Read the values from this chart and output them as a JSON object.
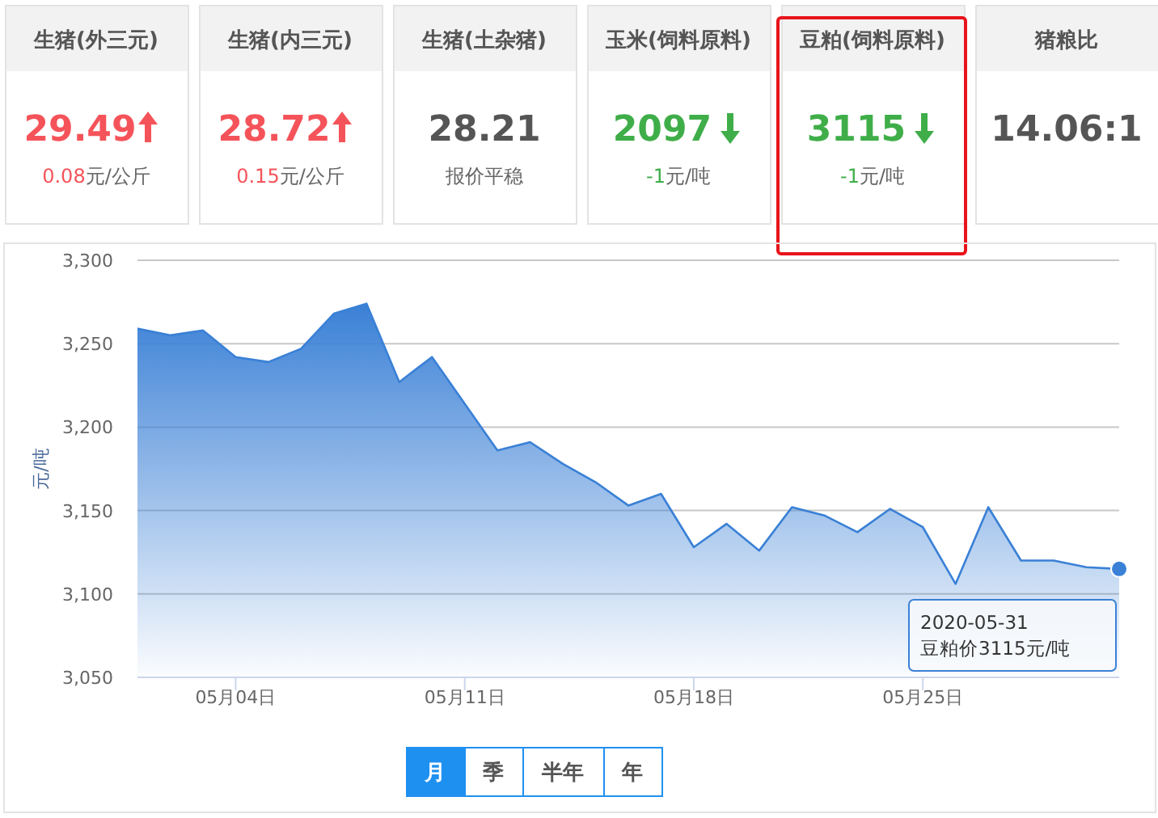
{
  "chart_data": [
    {
      "type": "other",
      "categories": [
        "生猪(外三元)",
        "生猪(内三元)",
        "生猪(土杂猪)",
        "玉米(饲料原料)",
        "豆粕(饲料原料)",
        "猪粮比"
      ],
      "value_labels": [
        "29.49",
        "28.72",
        "28.21",
        "2097",
        "3115",
        "14.06:1"
      ],
      "annotations": [
        "0.08元/公斤",
        "0.15元/公斤",
        "报价平稳",
        "-1元/吨",
        "-1元/吨"
      ]
    },
    {
      "type": "area",
      "ylabel": "元/吨",
      "x": [
        "2020-05-01",
        "2020-05-02",
        "2020-05-03",
        "2020-05-04",
        "2020-05-05",
        "2020-05-06",
        "2020-05-07",
        "2020-05-08",
        "2020-05-09",
        "2020-05-10",
        "2020-05-11",
        "2020-05-12",
        "2020-05-13",
        "2020-05-14",
        "2020-05-15",
        "2020-05-16",
        "2020-05-17",
        "2020-05-18",
        "2020-05-19",
        "2020-05-20",
        "2020-05-21",
        "2020-05-22",
        "2020-05-23",
        "2020-05-24",
        "2020-05-25",
        "2020-05-26",
        "2020-05-27",
        "2020-05-28",
        "2020-05-29",
        "2020-05-30",
        "2020-05-31"
      ],
      "series": [
        {
          "color": "#3a80d6",
          "values": [
            3259,
            3255,
            3258,
            3242,
            3239,
            3247,
            3268,
            3274,
            3227,
            3242,
            3214,
            3186,
            3191,
            3178,
            3167,
            3153,
            3160,
            3128,
            3142,
            3126,
            3152,
            3147,
            3137,
            3151,
            3140,
            3106,
            3152,
            3120,
            3120,
            3116,
            3115
          ]
        }
      ],
      "xlim": [
        "2020-05-01",
        "2020-05-31"
      ],
      "xticks": [
        {
          "value": "2020-05-04",
          "label": "05月04日"
        },
        {
          "value": "2020-05-11",
          "label": "05月11日"
        },
        {
          "value": "2020-05-18",
          "label": "05月18日"
        },
        {
          "value": "2020-05-25",
          "label": "05月25日"
        }
      ],
      "ylim": [
        3050,
        3300
      ],
      "yticks": [
        {
          "value": 3050,
          "label": "3,050"
        },
        {
          "value": 3100,
          "label": "3,100"
        },
        {
          "value": 3150,
          "label": "3,150"
        },
        {
          "value": 3200,
          "label": "3,200"
        },
        {
          "value": 3250,
          "label": "3,250"
        },
        {
          "value": 3300,
          "label": "3,300"
        }
      ],
      "grid": "y",
      "annotations": [
        "2020-05-31\n豆粕价3115元/吨",
        "月",
        "季",
        "半年",
        "年"
      ]
    }
  ]
}
